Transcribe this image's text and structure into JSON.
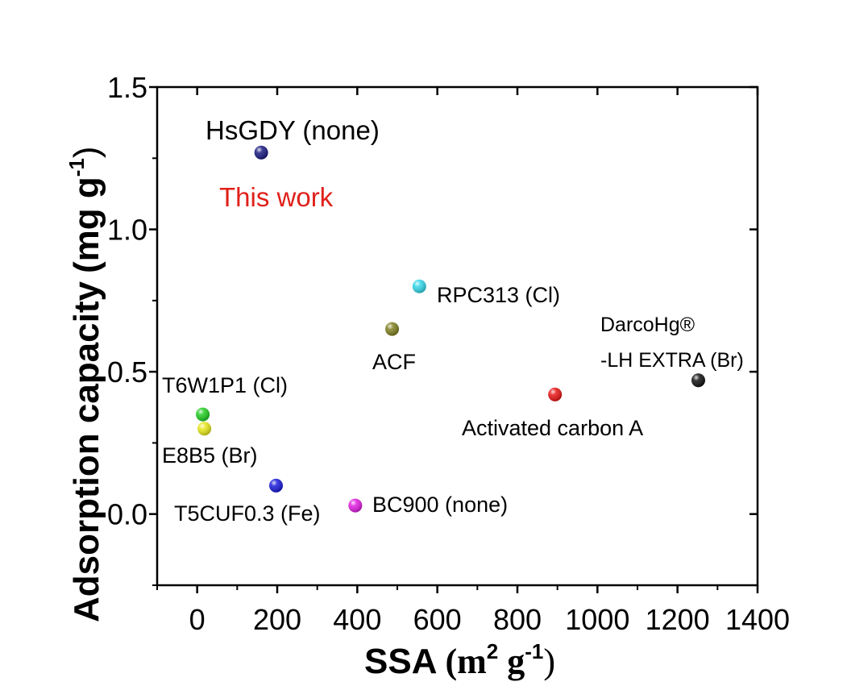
{
  "chart_data": {
    "type": "scatter",
    "xlabel": {
      "main": "SSA",
      "unit_open": "(m",
      "sup1": "2",
      "unit_mid": " g",
      "sup2": "-1",
      "unit_close": ")"
    },
    "ylabel": {
      "main": "Adsorption capacity",
      "unit": "(mg g",
      "sup": "-1",
      "close": ")"
    },
    "xlim": [
      -100,
      1400
    ],
    "ylim": [
      -0.25,
      1.5
    ],
    "xticks": [
      0,
      200,
      400,
      600,
      800,
      1000,
      1200,
      1400
    ],
    "yticks": [
      0.0,
      0.5,
      1.0,
      1.5
    ],
    "ytick_labels": [
      "0.0",
      "0.5",
      "1.0",
      "1.5"
    ],
    "points": [
      {
        "label": "HsGDY (none)",
        "x": 160,
        "y": 1.27,
        "color": "#1a1a80"
      },
      {
        "label": "RPC313 (Cl)",
        "x": 555,
        "y": 0.8,
        "color": "#33d6e8"
      },
      {
        "label": "ACF",
        "x": 487,
        "y": 0.65,
        "color": "#808020"
      },
      {
        "label": "DarcoHg® -LH EXTRA (Br)",
        "x": 1252,
        "y": 0.47,
        "color": "#111111"
      },
      {
        "label": "Activated carbon A",
        "x": 894,
        "y": 0.42,
        "color": "#e81515"
      },
      {
        "label": "T6W1P1 (Cl)",
        "x": 14,
        "y": 0.35,
        "color": "#22cc22"
      },
      {
        "label": "E8B5 (Br)",
        "x": 18,
        "y": 0.3,
        "color": "#e6e61a"
      },
      {
        "label": "T5CUF0.3 (Fe)",
        "x": 197,
        "y": 0.1,
        "color": "#1a1ad9"
      },
      {
        "label": "BC900 (none)",
        "x": 395,
        "y": 0.03,
        "color": "#e01ee0"
      }
    ],
    "annotations": [
      {
        "text": "HsGDY (none)",
        "color": "#000000"
      },
      {
        "text": "This work",
        "color": "#e0201a"
      },
      {
        "text": "RPC313 (Cl)",
        "color": "#000000"
      },
      {
        "text": "ACF",
        "color": "#000000"
      },
      {
        "text": "DarcoHg®",
        "color": "#000000"
      },
      {
        "text": "-LH EXTRA (Br)",
        "color": "#000000"
      },
      {
        "text": "Activated carbon A",
        "color": "#000000"
      },
      {
        "text": "T6W1P1 (Cl)",
        "color": "#000000"
      },
      {
        "text": "E8B5 (Br)",
        "color": "#000000"
      },
      {
        "text": "T5CUF0.3 (Fe)",
        "color": "#000000"
      },
      {
        "text": "BC900 (none)",
        "color": "#000000"
      }
    ]
  }
}
